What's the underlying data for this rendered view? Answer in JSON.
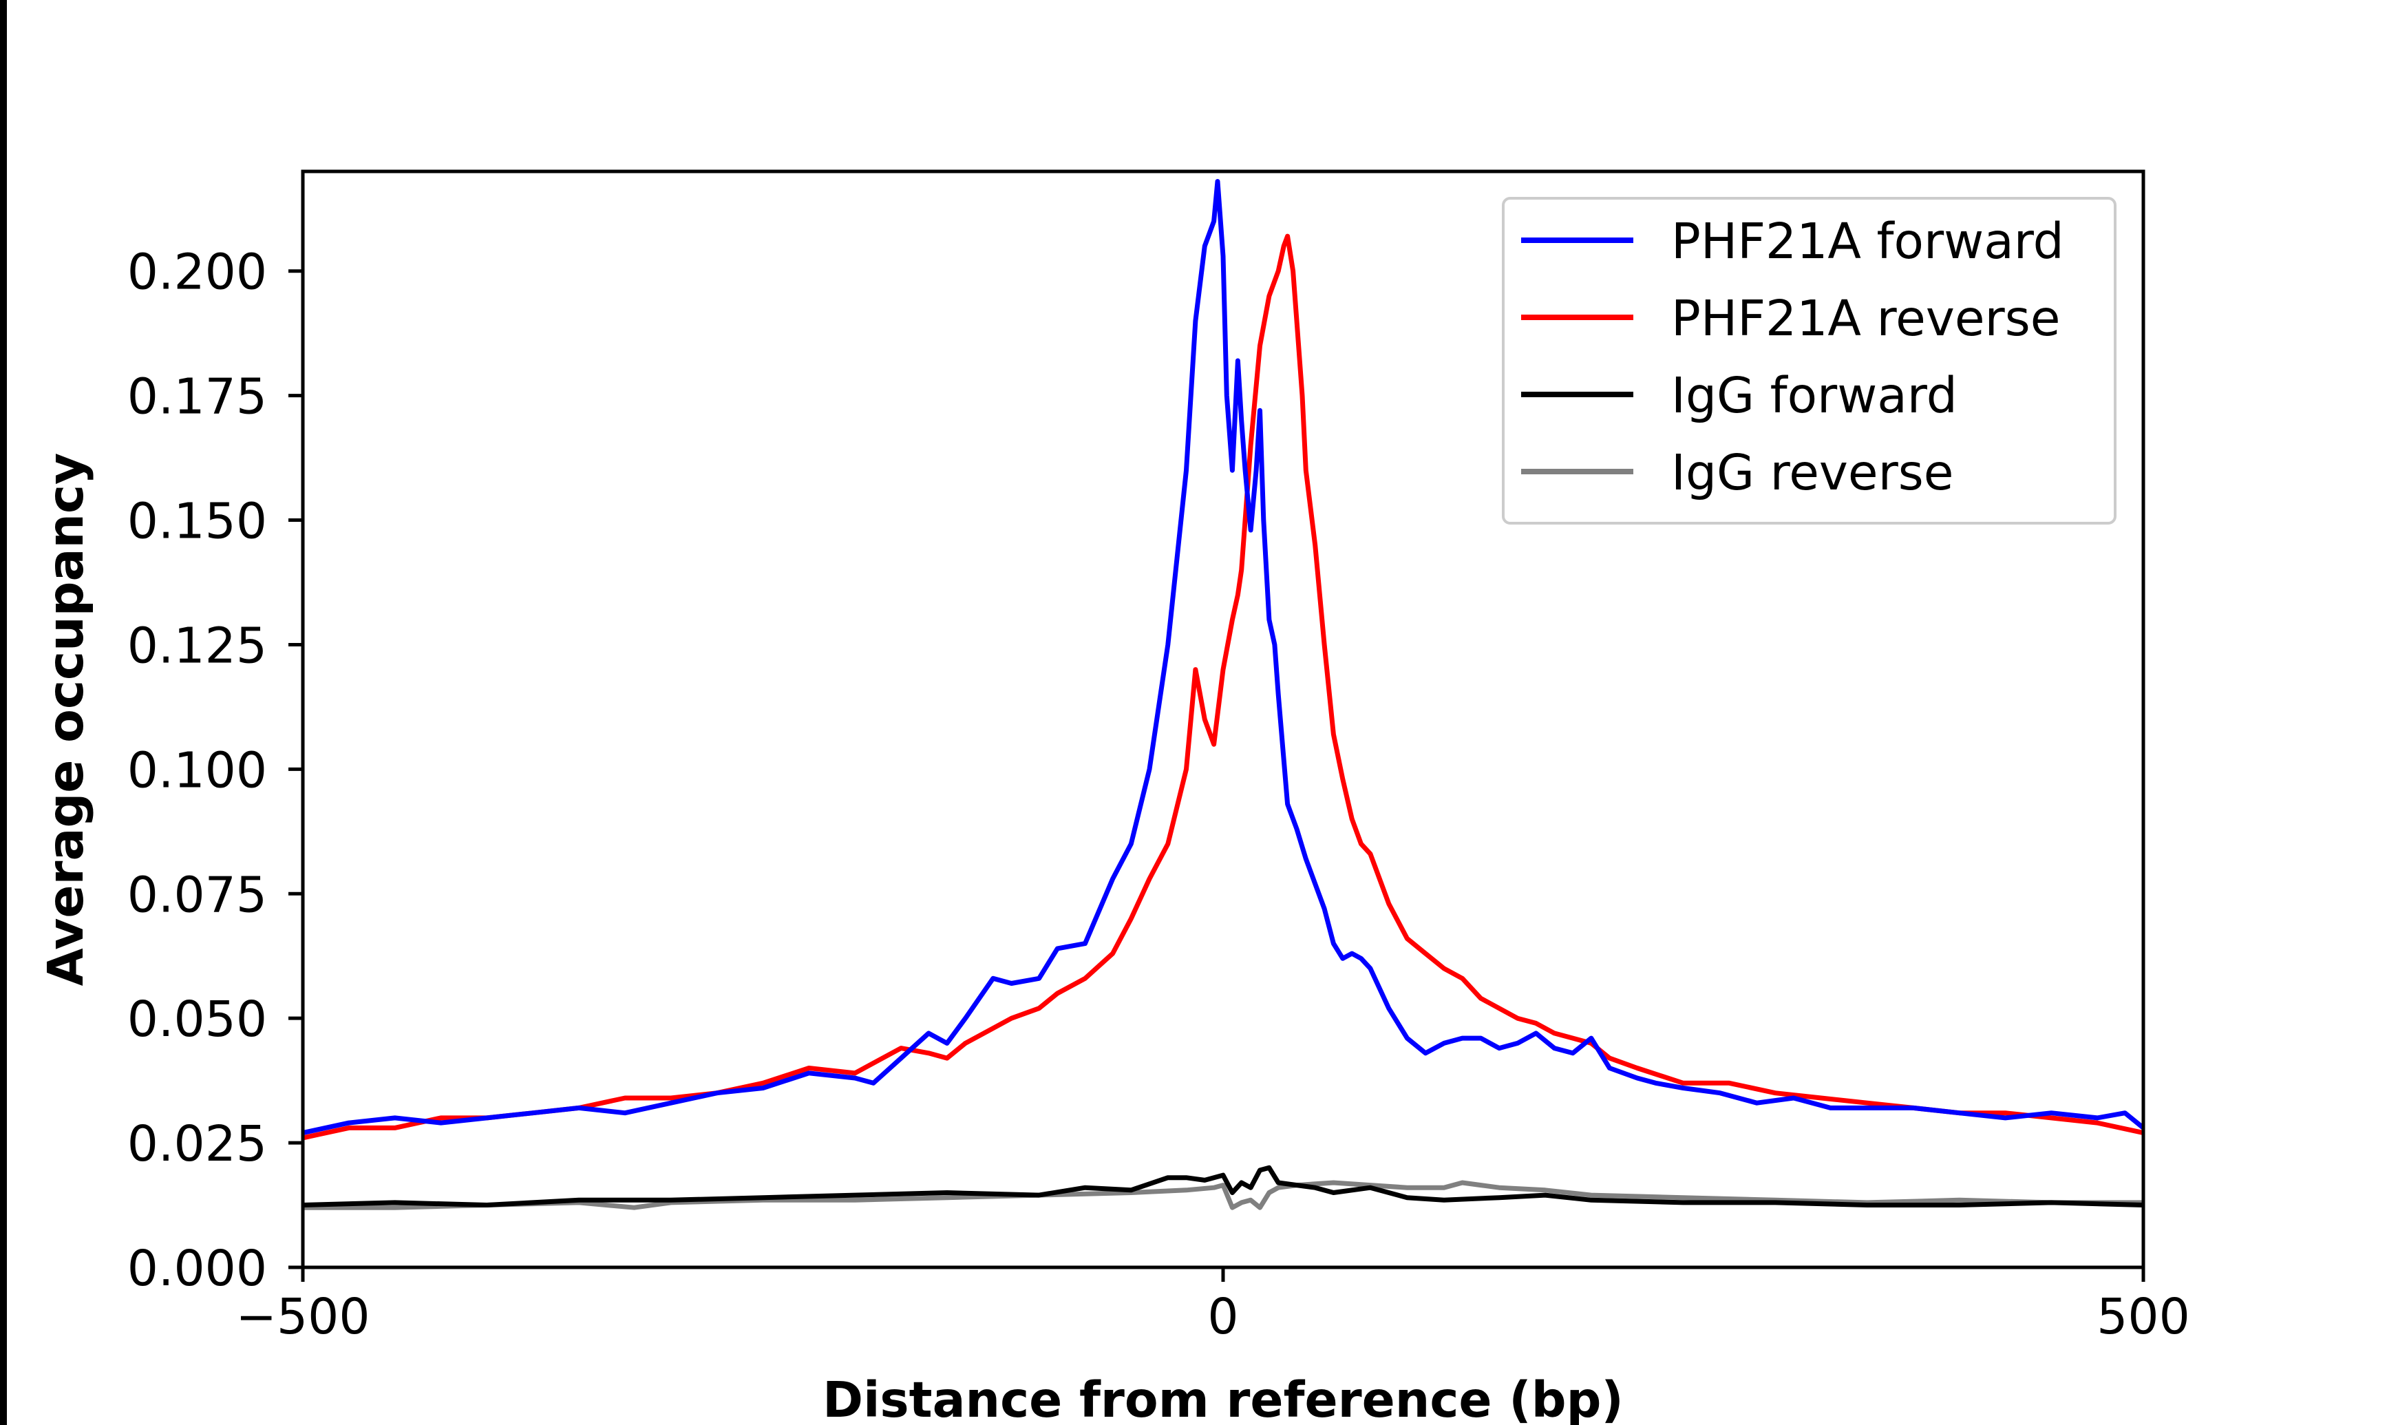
{
  "chart_data": {
    "type": "line",
    "xlabel": "Distance from reference (bp)",
    "ylabel": "Average occupancy",
    "xlim": [
      -500,
      500
    ],
    "ylim": [
      0,
      0.22
    ],
    "x_ticks": [
      {
        "value": -500,
        "label": "−500"
      },
      {
        "value": 0,
        "label": "0"
      },
      {
        "value": 500,
        "label": "500"
      }
    ],
    "y_ticks": [
      {
        "value": 0.0,
        "label": "0.000"
      },
      {
        "value": 0.025,
        "label": "0.025"
      },
      {
        "value": 0.05,
        "label": "0.050"
      },
      {
        "value": 0.075,
        "label": "0.075"
      },
      {
        "value": 0.1,
        "label": "0.100"
      },
      {
        "value": 0.125,
        "label": "0.125"
      },
      {
        "value": 0.15,
        "label": "0.150"
      },
      {
        "value": 0.175,
        "label": "0.175"
      },
      {
        "value": 0.2,
        "label": "0.200"
      }
    ],
    "grid": false,
    "legend_position": "top-right",
    "series": [
      {
        "name": "PHF21A forward",
        "color": "#0000ff",
        "x": [
          -500,
          -475,
          -450,
          -425,
          -400,
          -375,
          -350,
          -325,
          -300,
          -275,
          -250,
          -225,
          -200,
          -190,
          -175,
          -160,
          -150,
          -140,
          -125,
          -115,
          -100,
          -90,
          -75,
          -60,
          -50,
          -40,
          -30,
          -20,
          -15,
          -10,
          -5,
          -3,
          0,
          2,
          5,
          8,
          10,
          12,
          15,
          18,
          20,
          22,
          25,
          28,
          30,
          35,
          40,
          45,
          50,
          55,
          60,
          65,
          70,
          75,
          80,
          90,
          100,
          110,
          120,
          130,
          140,
          150,
          160,
          170,
          180,
          190,
          200,
          210,
          225,
          235,
          250,
          270,
          290,
          310,
          330,
          350,
          375,
          400,
          425,
          450,
          475,
          490,
          500
        ],
        "values": [
          0.027,
          0.029,
          0.03,
          0.029,
          0.03,
          0.031,
          0.032,
          0.031,
          0.033,
          0.035,
          0.036,
          0.039,
          0.038,
          0.037,
          0.042,
          0.047,
          0.045,
          0.05,
          0.058,
          0.057,
          0.058,
          0.064,
          0.065,
          0.078,
          0.085,
          0.1,
          0.125,
          0.16,
          0.19,
          0.205,
          0.21,
          0.218,
          0.203,
          0.175,
          0.16,
          0.182,
          0.17,
          0.16,
          0.148,
          0.16,
          0.172,
          0.15,
          0.13,
          0.125,
          0.115,
          0.093,
          0.088,
          0.082,
          0.077,
          0.072,
          0.065,
          0.062,
          0.063,
          0.062,
          0.06,
          0.052,
          0.046,
          0.043,
          0.045,
          0.046,
          0.046,
          0.044,
          0.045,
          0.047,
          0.044,
          0.043,
          0.046,
          0.04,
          0.038,
          0.037,
          0.036,
          0.035,
          0.033,
          0.034,
          0.032,
          0.032,
          0.032,
          0.031,
          0.03,
          0.031,
          0.03,
          0.031,
          0.028
        ]
      },
      {
        "name": "PHF21A reverse",
        "color": "#ff0000",
        "x": [
          -500,
          -475,
          -450,
          -425,
          -400,
          -375,
          -350,
          -325,
          -300,
          -275,
          -250,
          -225,
          -200,
          -190,
          -175,
          -160,
          -150,
          -140,
          -125,
          -115,
          -100,
          -90,
          -75,
          -60,
          -50,
          -40,
          -30,
          -20,
          -15,
          -10,
          -5,
          0,
          5,
          8,
          10,
          15,
          20,
          25,
          30,
          33,
          35,
          38,
          40,
          43,
          45,
          50,
          55,
          60,
          65,
          70,
          75,
          80,
          90,
          100,
          110,
          120,
          130,
          140,
          150,
          160,
          170,
          180,
          190,
          200,
          210,
          225,
          250,
          275,
          300,
          325,
          350,
          375,
          400,
          425,
          450,
          475,
          500
        ],
        "values": [
          0.026,
          0.028,
          0.028,
          0.03,
          0.03,
          0.031,
          0.032,
          0.034,
          0.034,
          0.035,
          0.037,
          0.04,
          0.039,
          0.041,
          0.044,
          0.043,
          0.042,
          0.045,
          0.048,
          0.05,
          0.052,
          0.055,
          0.058,
          0.063,
          0.07,
          0.078,
          0.085,
          0.1,
          0.12,
          0.11,
          0.105,
          0.12,
          0.13,
          0.135,
          0.14,
          0.165,
          0.185,
          0.195,
          0.2,
          0.205,
          0.207,
          0.2,
          0.19,
          0.175,
          0.16,
          0.145,
          0.125,
          0.107,
          0.098,
          0.09,
          0.085,
          0.083,
          0.073,
          0.066,
          0.063,
          0.06,
          0.058,
          0.054,
          0.052,
          0.05,
          0.049,
          0.047,
          0.046,
          0.045,
          0.042,
          0.04,
          0.037,
          0.037,
          0.035,
          0.034,
          0.033,
          0.032,
          0.031,
          0.031,
          0.03,
          0.029,
          0.027
        ]
      },
      {
        "name": "IgG forward",
        "color": "#000000",
        "x": [
          -500,
          -450,
          -400,
          -350,
          -300,
          -250,
          -200,
          -150,
          -100,
          -75,
          -50,
          -30,
          -20,
          -10,
          0,
          5,
          10,
          15,
          20,
          25,
          30,
          40,
          50,
          60,
          80,
          100,
          120,
          150,
          175,
          200,
          250,
          300,
          350,
          400,
          450,
          500
        ],
        "values": [
          0.0125,
          0.013,
          0.0125,
          0.0135,
          0.0135,
          0.014,
          0.0145,
          0.015,
          0.0145,
          0.016,
          0.0155,
          0.018,
          0.018,
          0.0175,
          0.0185,
          0.015,
          0.017,
          0.016,
          0.0195,
          0.02,
          0.017,
          0.0165,
          0.016,
          0.015,
          0.016,
          0.014,
          0.0135,
          0.014,
          0.0145,
          0.0135,
          0.013,
          0.013,
          0.0125,
          0.0125,
          0.013,
          0.0125
        ]
      },
      {
        "name": "IgG reverse",
        "color": "#808080",
        "x": [
          -500,
          -450,
          -400,
          -350,
          -320,
          -300,
          -250,
          -200,
          -150,
          -100,
          -50,
          -20,
          -5,
          0,
          5,
          10,
          15,
          20,
          25,
          30,
          40,
          60,
          80,
          100,
          120,
          130,
          140,
          150,
          175,
          200,
          250,
          300,
          350,
          400,
          450,
          500
        ],
        "values": [
          0.012,
          0.012,
          0.0125,
          0.013,
          0.012,
          0.013,
          0.0135,
          0.0135,
          0.014,
          0.0145,
          0.015,
          0.0155,
          0.016,
          0.0165,
          0.012,
          0.013,
          0.0135,
          0.012,
          0.015,
          0.016,
          0.0165,
          0.017,
          0.0165,
          0.016,
          0.016,
          0.017,
          0.0165,
          0.016,
          0.0155,
          0.0145,
          0.014,
          0.0135,
          0.013,
          0.0135,
          0.013,
          0.013
        ]
      }
    ]
  }
}
